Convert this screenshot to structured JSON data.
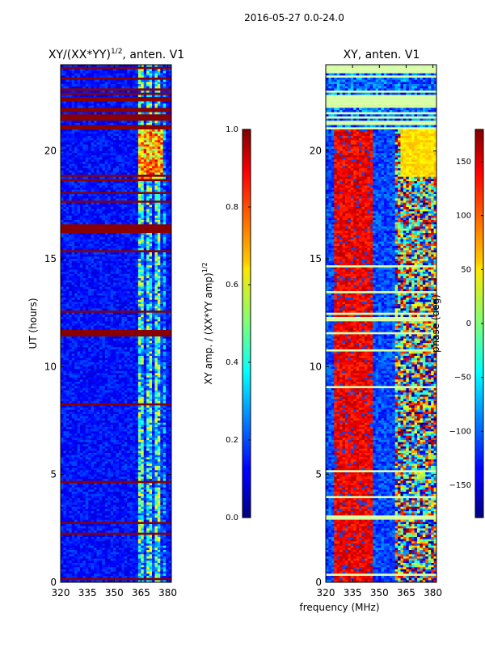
{
  "chart_data": [
    {
      "type": "heatmap",
      "suptitle": "2016-05-27 0.0-24.0",
      "title_main": "XY/(XX*YY)",
      "title_sup": "1/2",
      "title_tail": ", anten. V1",
      "ylabel": "UT (hours)",
      "xlabel": "",
      "x_ticks": [
        "320",
        "335",
        "350",
        "365",
        "380"
      ],
      "x_tick_values": [
        320,
        335,
        350,
        365,
        380
      ],
      "y_ticks": [
        "0",
        "5",
        "10",
        "15",
        "20"
      ],
      "y_tick_values": [
        0,
        5,
        10,
        15,
        20
      ],
      "xlim": [
        320,
        382
      ],
      "ylim": [
        0,
        24
      ],
      "colormap": "jet",
      "colorbar": {
        "label_main": "XY amp. / (XX*YY amp)",
        "label_sup": "1/2",
        "ticks": [
          "0.0",
          "0.2",
          "0.4",
          "0.6",
          "0.8",
          "1.0"
        ],
        "tick_values": [
          0.0,
          0.2,
          0.4,
          0.6,
          0.8,
          1.0
        ],
        "range": [
          0.0,
          1.0
        ]
      }
    },
    {
      "type": "heatmap",
      "title": "XY, anten. V1",
      "xlabel": "frequency (MHz)",
      "ylabel": "",
      "x_ticks": [
        "320",
        "335",
        "350",
        "365",
        "380"
      ],
      "x_tick_values": [
        320,
        335,
        350,
        365,
        380
      ],
      "y_ticks": [
        "0",
        "5",
        "10",
        "15",
        "20"
      ],
      "y_tick_values": [
        0,
        5,
        10,
        15,
        20
      ],
      "xlim": [
        320,
        382
      ],
      "ylim": [
        0,
        24
      ],
      "colormap": "jet",
      "colorbar": {
        "label": "phase (deg)",
        "ticks": [
          "−150",
          "−100",
          "−50",
          "0",
          "50",
          "100",
          "150"
        ],
        "tick_values": [
          -150,
          -100,
          -50,
          0,
          50,
          100,
          150
        ],
        "range": [
          -180,
          180
        ]
      }
    }
  ]
}
